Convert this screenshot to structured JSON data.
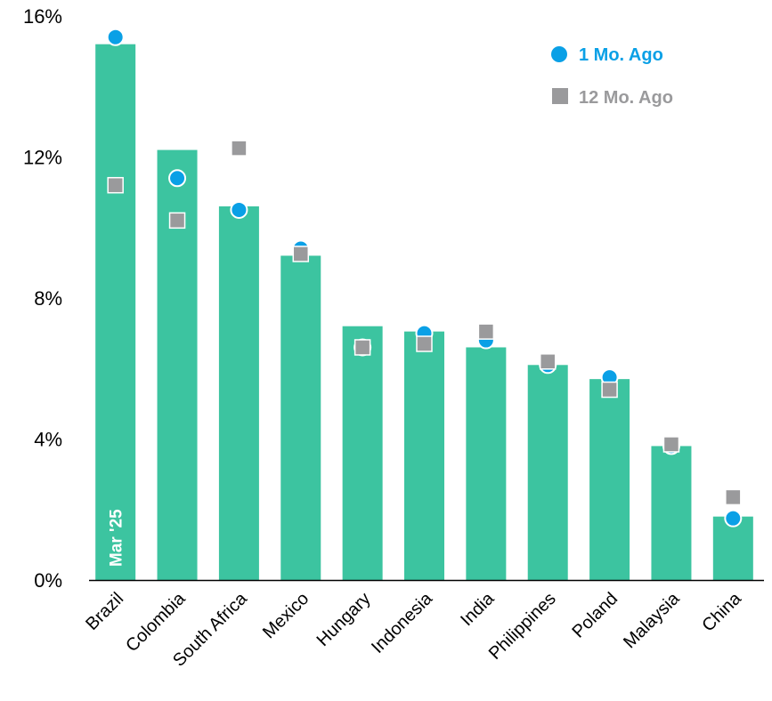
{
  "chart_data": {
    "type": "bar",
    "categories": [
      "Brazil",
      "Colombia",
      "South Africa",
      "Mexico",
      "Hungary",
      "Indonesia",
      "India",
      "Philippines",
      "Poland",
      "Malaysia",
      "China"
    ],
    "bar_label": "Mar '25",
    "series": [
      {
        "name": "Mar '25",
        "kind": "bar",
        "values": [
          15.2,
          12.2,
          10.6,
          9.2,
          7.2,
          7.05,
          6.6,
          6.1,
          5.7,
          3.8,
          1.8
        ]
      },
      {
        "name": "1 Mo. Ago",
        "kind": "marker-circle",
        "values": [
          15.4,
          11.4,
          10.5,
          9.4,
          6.6,
          7.0,
          6.8,
          6.1,
          5.75,
          3.8,
          1.75
        ]
      },
      {
        "name": "12 Mo. Ago",
        "kind": "marker-square",
        "values": [
          11.2,
          10.2,
          12.25,
          9.25,
          6.6,
          6.7,
          7.05,
          6.2,
          5.4,
          3.85,
          2.35
        ]
      }
    ],
    "ylim": [
      0,
      16
    ],
    "yticks": [
      "0%",
      "4%",
      "8%",
      "12%",
      "16%"
    ],
    "ytick_values": [
      0,
      4,
      8,
      12,
      16
    ],
    "legend": [
      {
        "label": "1 Mo. Ago",
        "marker": "circle",
        "color": "#0aa0e6"
      },
      {
        "label": "12 Mo. Ago",
        "marker": "square",
        "color": "#9a9a9c"
      }
    ],
    "legend_position": "top-right",
    "grid": false,
    "colors": {
      "bar": "#3cc4a0",
      "one_mo": "#0aa0e6",
      "twelve_mo": "#9a9a9c",
      "axis": "#000000"
    }
  }
}
